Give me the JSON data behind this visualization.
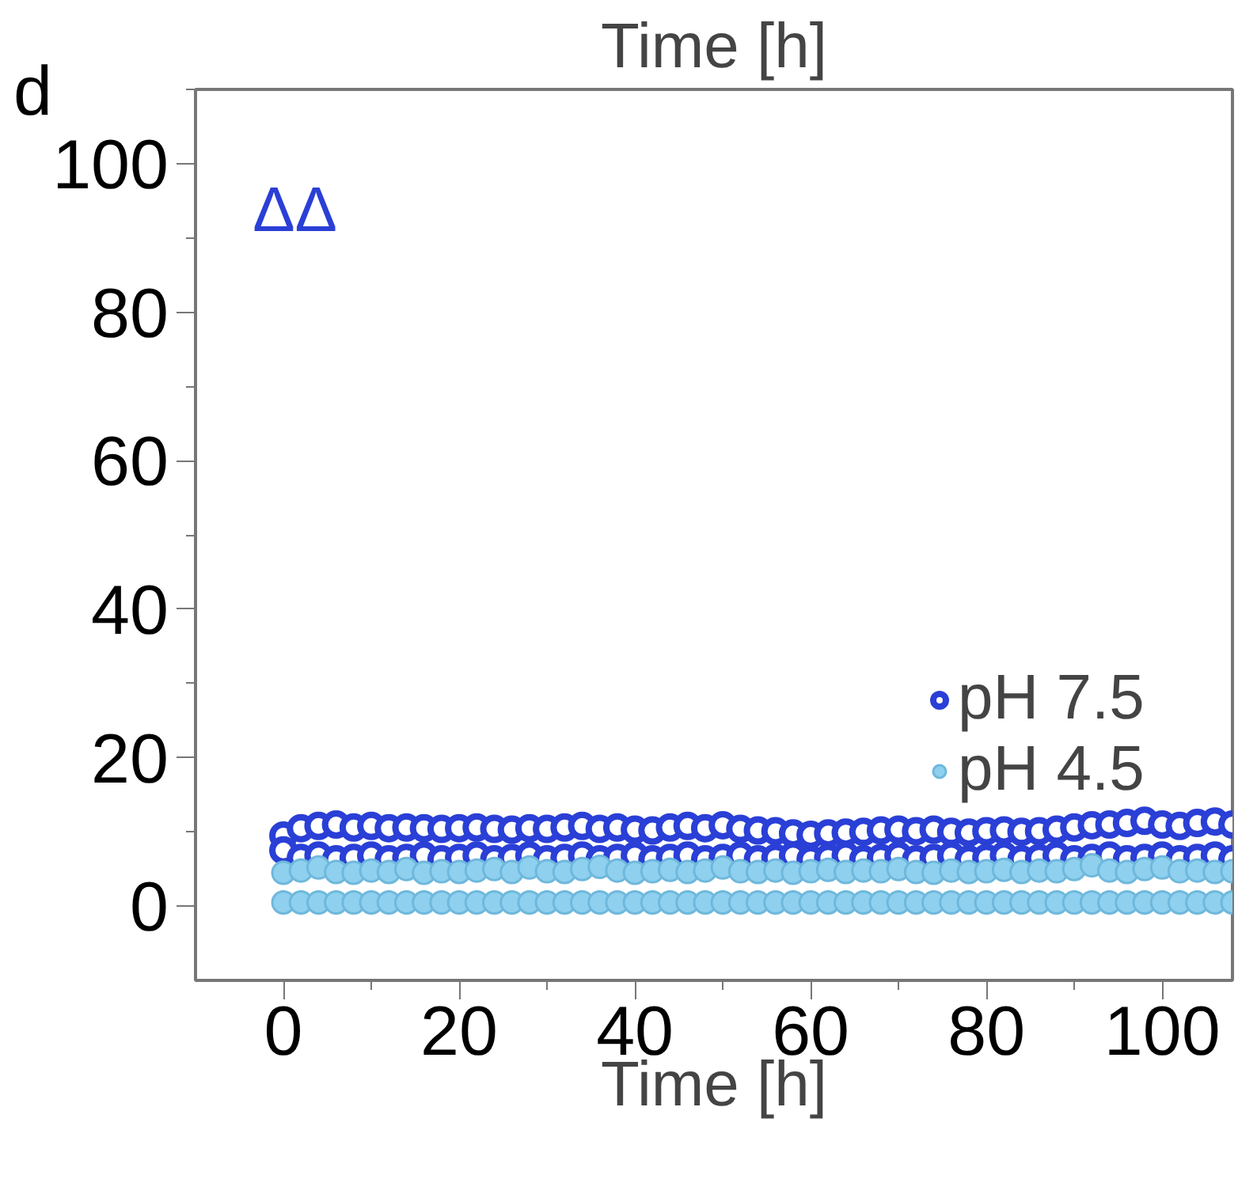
{
  "chart_data": {
    "type": "scatter",
    "xlabel": "Time [h]",
    "title": "Time [h]",
    "annotations": [
      "d",
      "ΔΔ"
    ],
    "xlim": [
      -10,
      108
    ],
    "ylim": [
      -10,
      110
    ],
    "xticks": [
      0,
      20,
      40,
      60,
      80,
      100
    ],
    "yticks": [
      0,
      20,
      40,
      60,
      80,
      100
    ],
    "tick_labels": "xy",
    "grid": false,
    "legend": "right",
    "marker": "circle",
    "series": [
      {
        "name": "pH 7.5",
        "color": "#2a3fd6",
        "x": [
          0,
          2,
          4,
          6,
          8,
          10,
          12,
          14,
          16,
          18,
          20,
          22,
          24,
          26,
          28,
          30,
          32,
          34,
          36,
          38,
          40,
          42,
          44,
          46,
          48,
          50,
          52,
          54,
          56,
          58,
          60,
          62,
          64,
          66,
          68,
          70,
          72,
          74,
          76,
          78,
          80,
          82,
          84,
          86,
          88,
          90,
          92,
          94,
          96,
          98,
          100,
          102,
          104,
          106,
          108,
          0,
          2,
          4,
          6,
          8,
          10,
          12,
          14,
          16,
          18,
          20,
          22,
          24,
          26,
          28,
          30,
          32,
          34,
          36,
          38,
          40,
          42,
          44,
          46,
          48,
          50,
          52,
          54,
          56,
          58,
          60,
          62,
          64,
          66,
          68,
          70,
          72,
          74,
          76,
          78,
          80,
          82,
          84,
          86,
          88,
          90,
          92,
          94,
          96,
          98,
          100,
          102,
          104,
          106,
          108
        ],
        "values": [
          9.5,
          10.5,
          10.8,
          11,
          10.6,
          10.8,
          10.5,
          10.6,
          10.5,
          10.4,
          10.5,
          10.6,
          10.4,
          10.3,
          10.5,
          10.4,
          10.6,
          10.8,
          10.4,
          10.6,
          10.3,
          10.2,
          10.6,
          10.8,
          10.5,
          10.9,
          10.4,
          10.2,
          10.1,
          9.8,
          9.6,
          9.8,
          9.9,
          10,
          10.2,
          10.3,
          10.1,
          10.3,
          10,
          9.9,
          10.1,
          10.2,
          10,
          10.1,
          10.3,
          10.6,
          10.9,
          11,
          11.2,
          11.5,
          11,
          10.8,
          11.2,
          11.4,
          11,
          7.5,
          6.5,
          6.8,
          6.3,
          6.5,
          6.8,
          6.3,
          6.5,
          6.8,
          6.3,
          6.5,
          6.8,
          6.3,
          6.5,
          6.8,
          6.3,
          6.5,
          6.8,
          6.3,
          6.5,
          6.8,
          6.3,
          6.5,
          6.8,
          6.3,
          6.5,
          6.8,
          6.3,
          6.5,
          6.8,
          6.3,
          6.5,
          6.8,
          6.3,
          6.5,
          6.8,
          6.3,
          6.5,
          6.8,
          6.3,
          6.5,
          6.8,
          6.3,
          6.5,
          6.8,
          6.3,
          6.5,
          6.8,
          6.3,
          6.5,
          6.8,
          6.3,
          6.5,
          6.8,
          6.3
        ]
      },
      {
        "name": "pH 4.5",
        "color": "#8fd0ef",
        "x": [
          0,
          2,
          4,
          6,
          8,
          10,
          12,
          14,
          16,
          18,
          20,
          22,
          24,
          26,
          28,
          30,
          32,
          34,
          36,
          38,
          40,
          42,
          44,
          46,
          48,
          50,
          52,
          54,
          56,
          58,
          60,
          62,
          64,
          66,
          68,
          70,
          72,
          74,
          76,
          78,
          80,
          82,
          84,
          86,
          88,
          90,
          92,
          94,
          96,
          98,
          100,
          102,
          104,
          106,
          108,
          0,
          2,
          4,
          6,
          8,
          10,
          12,
          14,
          16,
          18,
          20,
          22,
          24,
          26,
          28,
          30,
          32,
          34,
          36,
          38,
          40,
          42,
          44,
          46,
          48,
          50,
          52,
          54,
          56,
          58,
          60,
          62,
          64,
          66,
          68,
          70,
          72,
          74,
          76,
          78,
          80,
          82,
          84,
          86,
          88,
          90,
          92,
          94,
          96,
          98,
          100,
          102,
          104,
          106,
          108
        ],
        "values": [
          4.5,
          4.8,
          5.2,
          4.6,
          4.5,
          4.8,
          4.6,
          5,
          4.5,
          4.7,
          4.6,
          4.8,
          5,
          4.6,
          5.2,
          4.7,
          4.6,
          5,
          5.3,
          4.8,
          4.5,
          4.7,
          4.9,
          4.6,
          4.8,
          5.2,
          4.7,
          4.6,
          4.8,
          4.5,
          4.7,
          4.9,
          4.6,
          4.8,
          4.7,
          5,
          4.6,
          4.5,
          4.8,
          4.6,
          4.7,
          4.9,
          4.6,
          4.8,
          4.7,
          5,
          5.5,
          4.8,
          4.6,
          5,
          5.2,
          4.7,
          4.8,
          4.6,
          4.7,
          0.5,
          0.5,
          0.5,
          0.5,
          0.5,
          0.5,
          0.5,
          0.5,
          0.5,
          0.5,
          0.5,
          0.5,
          0.5,
          0.5,
          0.5,
          0.5,
          0.5,
          0.5,
          0.5,
          0.5,
          0.5,
          0.5,
          0.5,
          0.5,
          0.5,
          0.5,
          0.5,
          0.5,
          0.5,
          0.5,
          0.5,
          0.5,
          0.5,
          0.5,
          0.5,
          0.5,
          0.5,
          0.5,
          0.5,
          0.5,
          0.5,
          0.5,
          0.5,
          0.5,
          0.5,
          0.5,
          0.5,
          0.5,
          0.5,
          0.5,
          0.5,
          0.5,
          0.5,
          0.5,
          0.5
        ]
      }
    ]
  }
}
